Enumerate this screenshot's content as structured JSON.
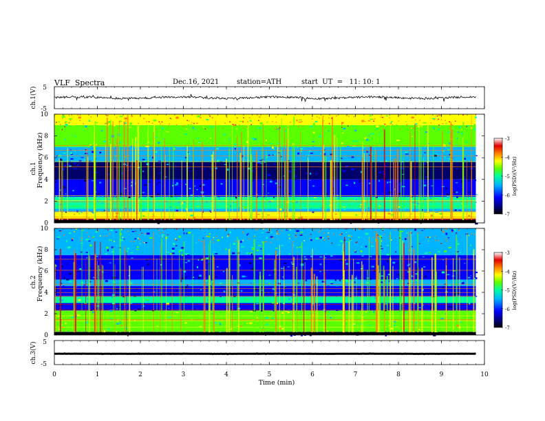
{
  "header": {
    "title": "VLF  Spectra",
    "date": "Dec.16, 2021",
    "station": "station=ATH",
    "start": "start  UT  =   11: 10: 1"
  },
  "chart_data": [
    {
      "type": "line",
      "name": "ch1-waveform",
      "ylabel": "ch.1(V)",
      "ylim": [
        -5,
        5
      ],
      "yticks": [
        "5",
        "-5"
      ],
      "description_values": {
        "mean": 0.0,
        "amplitude_range": [
          -1.5,
          1.5
        ]
      }
    },
    {
      "type": "heatmap",
      "name": "ch1-spectrogram",
      "ylabel": "ch.1  Frequency  (kHz)",
      "ylim": [
        0,
        10
      ],
      "yticks": [
        "0",
        "2",
        "4",
        "6",
        "8",
        "10"
      ],
      "xlim": [
        0,
        10
      ],
      "data_extent_min": 9.8,
      "colorbar": {
        "label": "log(PSD)(V²/Hz)",
        "range": [
          -7,
          -3
        ],
        "ticks": [
          "-3",
          "-4",
          "-5",
          "-6",
          "-7"
        ]
      },
      "bands_khz": [
        {
          "from": 0,
          "to": 0.35,
          "level": -7
        },
        {
          "from": 0.35,
          "to": 1.0,
          "level": -4.6
        },
        {
          "from": 1.0,
          "to": 1.3,
          "level": -6.2
        },
        {
          "from": 1.3,
          "to": 2.4,
          "level": -5.3
        },
        {
          "from": 2.4,
          "to": 4.0,
          "level": -6.4
        },
        {
          "from": 4.0,
          "to": 5.6,
          "level": -6.9
        },
        {
          "from": 5.6,
          "to": 7.0,
          "level": -6.0
        },
        {
          "from": 7.0,
          "to": 9.0,
          "level": -5.2
        },
        {
          "from": 9.0,
          "to": 10,
          "level": -4.6
        }
      ]
    },
    {
      "type": "heatmap",
      "name": "ch2-spectrogram",
      "ylabel": "ch.2  Frequency  (kHz)",
      "ylim": [
        0,
        10
      ],
      "yticks": [
        "0",
        "2",
        "4",
        "6",
        "8",
        "10"
      ],
      "xlim": [
        0,
        10
      ],
      "data_extent_min": 9.8,
      "colorbar": {
        "label": "log(PSD)(V²/Hz)",
        "range": [
          -7,
          -3
        ],
        "ticks": [
          "-3",
          "-4",
          "-5",
          "-6",
          "-7"
        ]
      },
      "bands_khz": [
        {
          "from": 0,
          "to": 0.3,
          "level": -7
        },
        {
          "from": 0.3,
          "to": 1.0,
          "level": -4.8
        },
        {
          "from": 1.0,
          "to": 2.3,
          "level": -5.2
        },
        {
          "from": 2.3,
          "to": 3.0,
          "level": -6.5
        },
        {
          "from": 3.0,
          "to": 3.6,
          "level": -5.4
        },
        {
          "from": 3.6,
          "to": 4.6,
          "level": -6.7
        },
        {
          "from": 4.6,
          "to": 5.2,
          "level": -5.9
        },
        {
          "from": 5.2,
          "to": 7.5,
          "level": -6.4
        },
        {
          "from": 7.5,
          "to": 10,
          "level": -5.8
        }
      ]
    },
    {
      "type": "line",
      "name": "ch3-waveform",
      "ylabel": "ch.3(V)",
      "ylim": [
        -5,
        5
      ],
      "yticks": [
        "5",
        "-5"
      ],
      "description_values": {
        "mean": -0.5,
        "amplitude_range": [
          -0.7,
          -0.3
        ]
      }
    }
  ],
  "xaxis": {
    "label": "Time  (min)",
    "range": [
      0,
      10
    ],
    "ticks": [
      "0",
      "1",
      "2",
      "3",
      "4",
      "5",
      "6",
      "7",
      "8",
      "9",
      "10"
    ]
  },
  "colors": {
    "black": "#000000",
    "colormap": [
      "#00006a",
      "#0000ff",
      "#00b4ff",
      "#00ffa0",
      "#5aff00",
      "#ffff00",
      "#ff8000",
      "#e00000",
      "#ffffff"
    ]
  }
}
